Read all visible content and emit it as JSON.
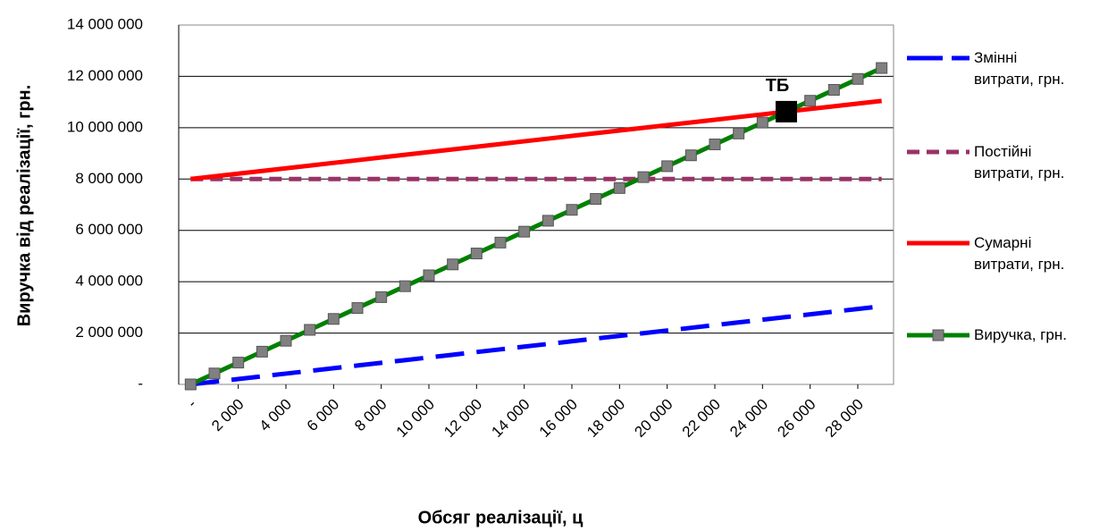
{
  "chart_data": {
    "type": "line",
    "xlabel": "Обсяг реалізації,  ц",
    "ylabel": "Виручка  від реалізації,  грн.",
    "x": [
      0,
      1000,
      2000,
      3000,
      4000,
      5000,
      6000,
      7000,
      8000,
      9000,
      10000,
      11000,
      12000,
      13000,
      14000,
      15000,
      16000,
      17000,
      18000,
      19000,
      20000,
      21000,
      22000,
      23000,
      24000,
      25000,
      26000,
      27000,
      28000,
      29000
    ],
    "series": [
      {
        "name": "Змінні\nвитрати,  грн.",
        "color": "#0000ff",
        "dash": "long",
        "values": [
          0,
          105000,
          210000,
          315000,
          420000,
          525000,
          630000,
          735000,
          840000,
          945000,
          1050000,
          1155000,
          1260000,
          1365000,
          1470000,
          1575000,
          1680000,
          1785000,
          1890000,
          1995000,
          2100000,
          2205000,
          2310000,
          2415000,
          2520000,
          2625000,
          2730000,
          2835000,
          2940000,
          3045000
        ]
      },
      {
        "name": "Постійні\nвитрати,  грн.",
        "color": "#993366",
        "dash": "short",
        "values": [
          8000000,
          8000000,
          8000000,
          8000000,
          8000000,
          8000000,
          8000000,
          8000000,
          8000000,
          8000000,
          8000000,
          8000000,
          8000000,
          8000000,
          8000000,
          8000000,
          8000000,
          8000000,
          8000000,
          8000000,
          8000000,
          8000000,
          8000000,
          8000000,
          8000000,
          8000000,
          8000000,
          8000000,
          8000000,
          8000000
        ]
      },
      {
        "name": "Сумарні\nвитрати,  грн.",
        "color": "#ff0000",
        "dash": "solid",
        "values": [
          8000000,
          8105000,
          8210000,
          8315000,
          8420000,
          8525000,
          8630000,
          8735000,
          8840000,
          8945000,
          9050000,
          9155000,
          9260000,
          9365000,
          9470000,
          9575000,
          9680000,
          9785000,
          9890000,
          9995000,
          10100000,
          10205000,
          10310000,
          10415000,
          10520000,
          10625000,
          10730000,
          10835000,
          10940000,
          11045000
        ]
      },
      {
        "name": "Виручка,  грн.",
        "color": "#008000",
        "dash": "solid",
        "marker": "#808080",
        "values": [
          0,
          425000,
          850000,
          1275000,
          1700000,
          2125000,
          2550000,
          2975000,
          3400000,
          3825000,
          4250000,
          4675000,
          5100000,
          5525000,
          5950000,
          6375000,
          6800000,
          7225000,
          7650000,
          8075000,
          8500000,
          8925000,
          9350000,
          9775000,
          10200000,
          10625000,
          11050000,
          11475000,
          11900000,
          12325000
        ]
      }
    ],
    "annotations": [
      {
        "text": "ТБ",
        "x": 25000,
        "y": 10625000
      }
    ],
    "xlim": [
      -500,
      29500
    ],
    "xticks": [
      {
        "value": 0,
        "label": "-"
      },
      {
        "value": 2000,
        "label": "2 000"
      },
      {
        "value": 4000,
        "label": "4 000"
      },
      {
        "value": 6000,
        "label": "6 000"
      },
      {
        "value": 8000,
        "label": "8 000"
      },
      {
        "value": 10000,
        "label": "10 000"
      },
      {
        "value": 12000,
        "label": "12 000"
      },
      {
        "value": 14000,
        "label": "14 000"
      },
      {
        "value": 16000,
        "label": "16 000"
      },
      {
        "value": 18000,
        "label": "18 000"
      },
      {
        "value": 20000,
        "label": "20 000"
      },
      {
        "value": 22000,
        "label": "22 000"
      },
      {
        "value": 24000,
        "label": "24 000"
      },
      {
        "value": 26000,
        "label": "26 000"
      },
      {
        "value": 28000,
        "label": "28 000"
      }
    ],
    "ylim": [
      0,
      14000000
    ],
    "yticks": [
      {
        "value": 0,
        "label": "-"
      },
      {
        "value": 2000000,
        "label": "2 000 000"
      },
      {
        "value": 4000000,
        "label": "4 000 000"
      },
      {
        "value": 6000000,
        "label": "6 000 000"
      },
      {
        "value": 8000000,
        "label": "8 000 000"
      },
      {
        "value": 10000000,
        "label": "10 000 000"
      },
      {
        "value": 12000000,
        "label": "12 000 000"
      },
      {
        "value": 14000000,
        "label": "14 000 000"
      }
    ],
    "grid": true,
    "legend": "right"
  }
}
